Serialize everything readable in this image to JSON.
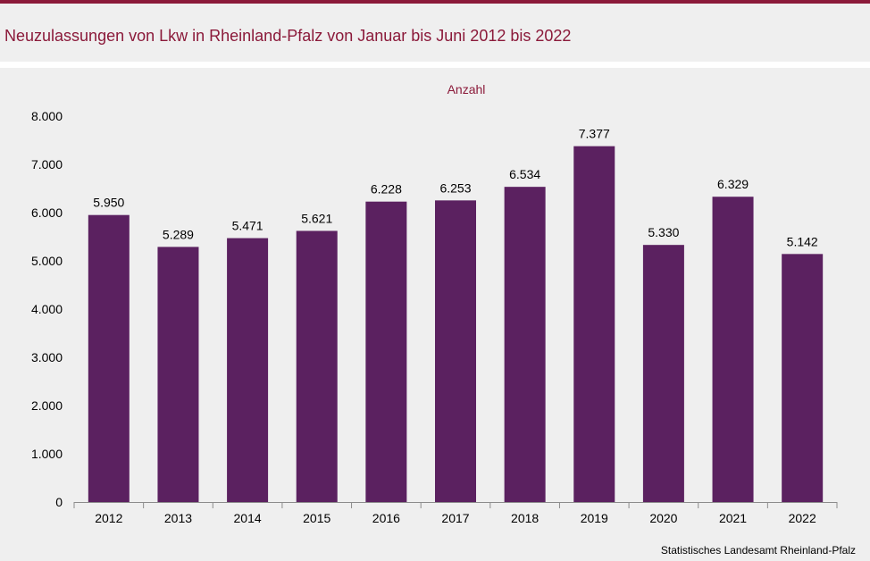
{
  "header": {
    "title": "Neuzulassungen von Lkw in Rheinland-Pfalz von Januar bis Juni 2012 bis 2022"
  },
  "footer": {
    "source": "Statistisches Landesamt Rheinland-Pfalz"
  },
  "colors": {
    "accent": "#8b1a3a",
    "bar": "#5b2160",
    "background": "#efefef"
  },
  "chart_data": {
    "type": "bar",
    "ylabel": "Anzahl",
    "categories": [
      "2012",
      "2013",
      "2014",
      "2015",
      "2016",
      "2017",
      "2018",
      "2019",
      "2020",
      "2021",
      "2022"
    ],
    "values": [
      5950,
      5289,
      5471,
      5621,
      6228,
      6253,
      6534,
      7377,
      5330,
      6329,
      5142
    ],
    "value_labels": [
      "5.950",
      "5.289",
      "5.471",
      "5.621",
      "6.228",
      "6.253",
      "6.534",
      "7.377",
      "5.330",
      "6.329",
      "5.142"
    ],
    "ylim": [
      0,
      8000
    ],
    "yticks": [
      0,
      1000,
      2000,
      3000,
      4000,
      5000,
      6000,
      7000,
      8000
    ],
    "ytick_labels": [
      "0",
      "1.000",
      "2.000",
      "3.000",
      "4.000",
      "5.000",
      "6.000",
      "7.000",
      "8.000"
    ],
    "grid": false,
    "legend": "none"
  }
}
